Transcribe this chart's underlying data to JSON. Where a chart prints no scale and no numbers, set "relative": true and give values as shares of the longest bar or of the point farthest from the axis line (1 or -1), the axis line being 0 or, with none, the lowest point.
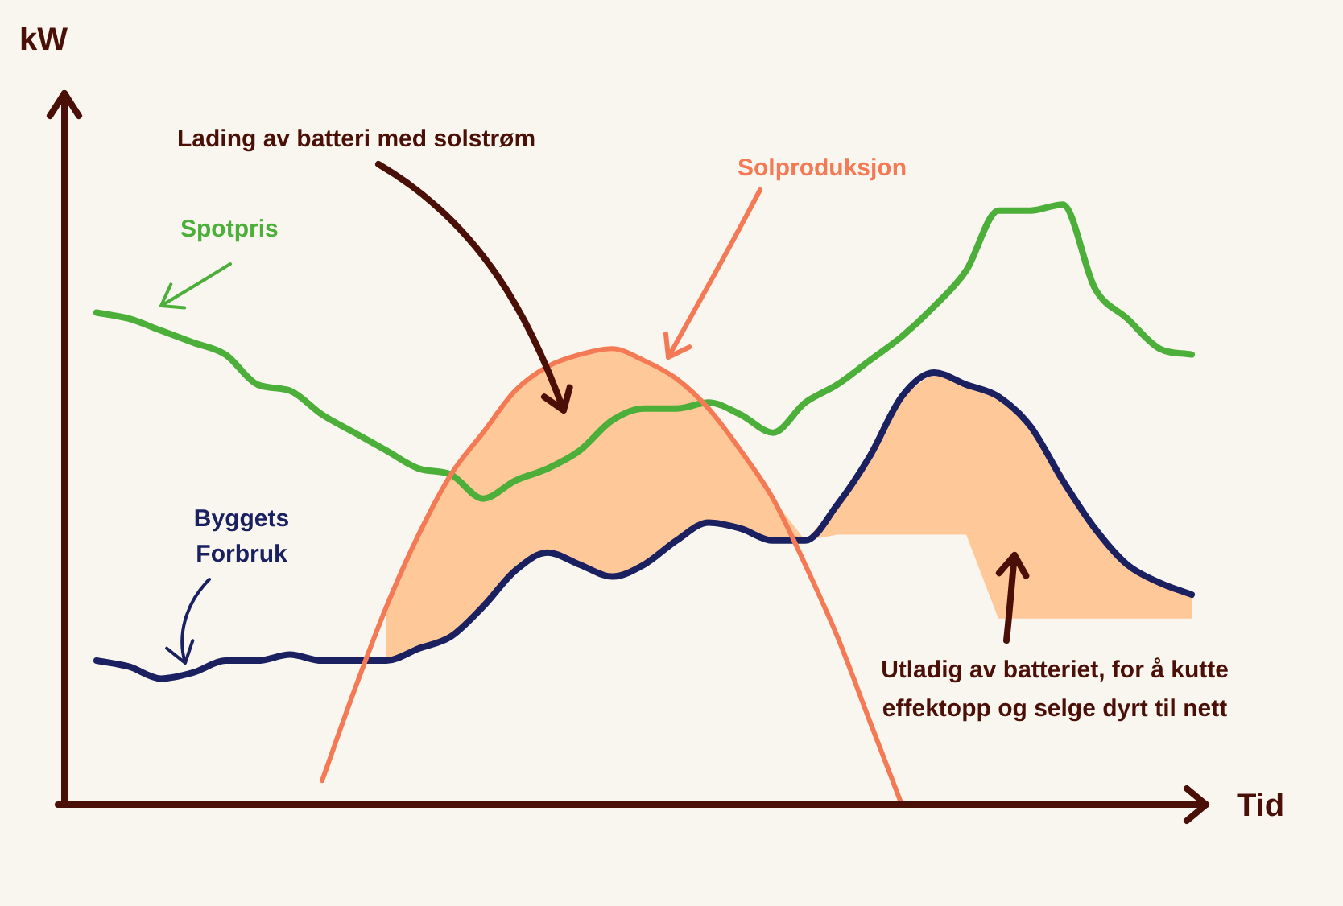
{
  "chart_data": {
    "type": "line",
    "relative": true,
    "xlabel": "Tid",
    "ylabel": "kW",
    "legend": false,
    "marker": "none",
    "categories": [
      null,
      null,
      null,
      null,
      null,
      null,
      null,
      null,
      null,
      null,
      null,
      null,
      null,
      null,
      null,
      null,
      null,
      null,
      null,
      null,
      null,
      null,
      null,
      null,
      null,
      null,
      null,
      null,
      null,
      null,
      null,
      null,
      null,
      null,
      null
    ],
    "series": [
      {
        "name": "Solproduksjon",
        "color": "#f47a55",
        "values": [
          null,
          null,
          null,
          null,
          null,
          null,
          null,
          0.04,
          0.19,
          0.33,
          0.45,
          0.55,
          0.62,
          0.69,
          0.73,
          0.75,
          0.76,
          0.74,
          0.71,
          0.66,
          0.59,
          0.51,
          0.4,
          0.28,
          0.14,
          0,
          null,
          null,
          null,
          null,
          null,
          null,
          null,
          null,
          null
        ]
      },
      {
        "name": "Spotpris",
        "color": "#4caf3a",
        "values": [
          0.82,
          0.81,
          0.79,
          0.77,
          0.75,
          0.7,
          0.69,
          0.65,
          0.62,
          0.59,
          0.56,
          0.55,
          0.51,
          0.54,
          0.56,
          0.59,
          0.64,
          0.66,
          0.66,
          0.67,
          0.65,
          0.62,
          0.67,
          0.7,
          0.74,
          0.78,
          0.83,
          0.89,
          0.99,
          0.99,
          1.0,
          0.86,
          0.81,
          0.76,
          0.75
        ]
      },
      {
        "name": "Byggets Forbruk",
        "color": "#1a2060",
        "values": [
          0.24,
          0.23,
          0.21,
          0.22,
          0.24,
          0.24,
          0.25,
          0.24,
          0.24,
          0.24,
          0.26,
          0.28,
          0.33,
          0.39,
          0.42,
          0.4,
          0.38,
          0.4,
          0.44,
          0.47,
          0.46,
          0.44,
          0.44,
          0.5,
          0.58,
          0.68,
          0.72,
          0.7,
          0.68,
          0.63,
          0.54,
          0.46,
          0.4,
          0.37,
          0.35
        ],
        "lower": [
          null,
          null,
          null,
          null,
          null,
          null,
          null,
          null,
          null,
          0.24,
          0.26,
          0.28,
          0.33,
          0.39,
          0.42,
          0.4,
          0.38,
          0.4,
          0.44,
          0.47,
          0.46,
          0.44,
          0.44,
          0.45,
          0.45,
          0.45,
          0.45,
          0.45,
          0.31,
          0.31,
          0.31,
          0.31,
          0.31,
          0.31,
          0.31
        ],
        "upper": [
          null,
          null,
          null,
          null,
          null,
          null,
          null,
          null,
          null,
          0.33,
          0.45,
          0.55,
          0.62,
          0.69,
          0.73,
          0.75,
          0.76,
          0.74,
          0.71,
          0.66,
          0.59,
          0.51,
          0.44,
          0.5,
          0.58,
          0.68,
          0.72,
          0.7,
          0.68,
          0.63,
          0.54,
          0.46,
          0.4,
          0.37,
          0.35
        ]
      }
    ],
    "annotations": [
      "Lading av batteri med solstrøm",
      "Utladig av batteriet, for å kutte effektopp og selge dyrt til nett"
    ]
  }
}
